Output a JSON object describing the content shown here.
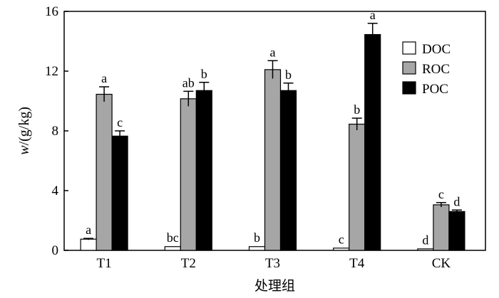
{
  "chart_data": {
    "type": "bar",
    "categories": [
      "T1",
      "T2",
      "T3",
      "T4",
      "CK"
    ],
    "series": [
      {
        "name": "DOC",
        "color": "#ffffff",
        "values": [
          0.75,
          0.25,
          0.25,
          0.15,
          0.1
        ],
        "errors": [
          0.05,
          0.03,
          0.03,
          0.02,
          0.02
        ],
        "labels": [
          "a",
          "bc",
          "b",
          "c",
          "d"
        ]
      },
      {
        "name": "ROC",
        "color": "#a6a6a6",
        "values": [
          10.45,
          10.15,
          12.1,
          8.45,
          3.05
        ],
        "errors": [
          0.5,
          0.5,
          0.6,
          0.4,
          0.15
        ],
        "labels": [
          "a",
          "ab",
          "a",
          "b",
          "c"
        ]
      },
      {
        "name": "POC",
        "color": "#000000",
        "values": [
          7.65,
          10.7,
          10.7,
          14.45,
          2.6
        ],
        "errors": [
          0.35,
          0.55,
          0.5,
          0.75,
          0.1
        ],
        "labels": [
          "c",
          "b",
          "b",
          "a",
          "d"
        ]
      }
    ],
    "xlabel": "处理组",
    "ylabel": "w/(g/kg)",
    "ylim": [
      0,
      16
    ],
    "yticks": [
      0,
      4,
      8,
      12,
      16
    ],
    "grid": false,
    "legend_position": "top-right"
  }
}
